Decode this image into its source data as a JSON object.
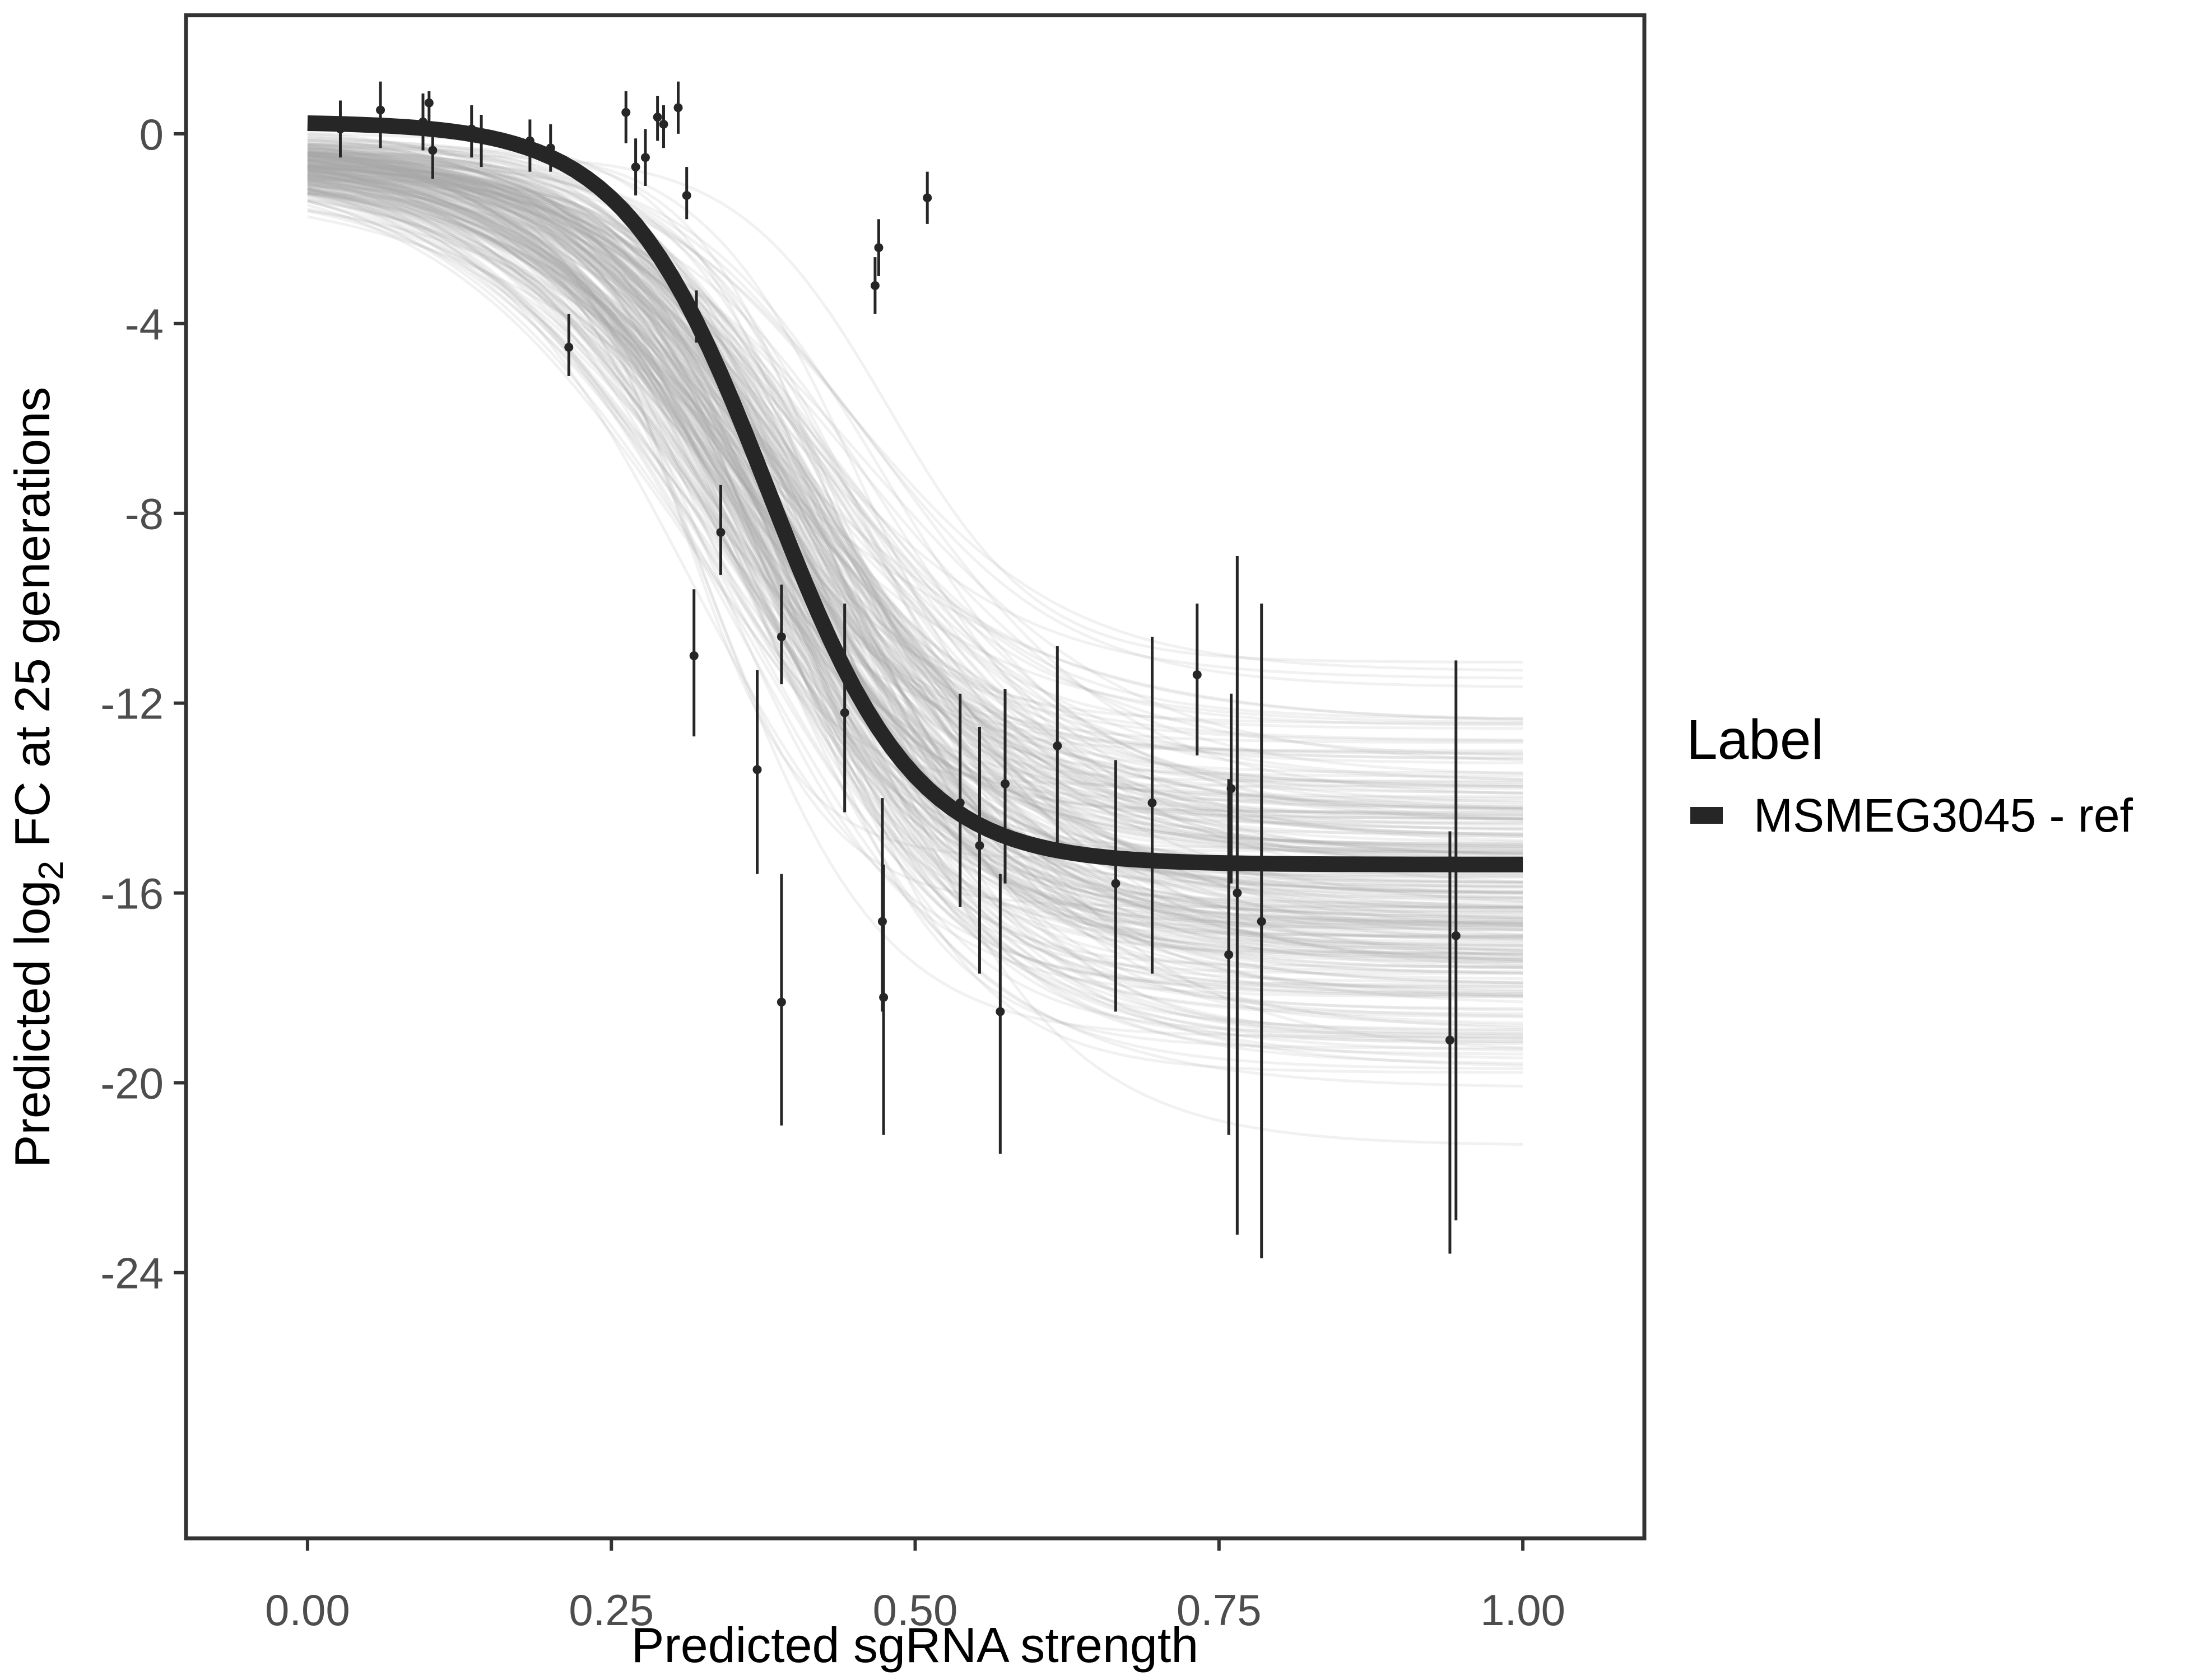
{
  "chart_data": {
    "type": "line",
    "xlabel": "Predicted sgRNA strength",
    "ylabel": {
      "prefix": "Predicted  log",
      "subscript": "2",
      "suffix": " FC at 25 generations"
    },
    "xlim": [
      -0.1,
      1.1
    ],
    "ylim": [
      -29.6,
      2.5
    ],
    "x_ticks": [
      0.0,
      0.25,
      0.5,
      0.75,
      1.0
    ],
    "x_tick_labels": [
      "0.00",
      "0.25",
      "0.50",
      "0.75",
      "1.00"
    ],
    "y_ticks": [
      0,
      -4,
      -8,
      -12,
      -16,
      -20,
      -24
    ],
    "y_tick_labels": [
      "0",
      "-4",
      "-8",
      "-12",
      "-16",
      "-20",
      "-24"
    ],
    "grid": false,
    "legend": {
      "title": "Label",
      "position": "right",
      "entries": [
        {
          "label": "MSMEG3045 - ref",
          "color": "#262626"
        }
      ]
    },
    "colors": {
      "fit_line": "#262626",
      "posterior_draws": "#a6a6a6",
      "points": "#262626",
      "panel_border": "#333333"
    },
    "series": [
      {
        "name": "MSMEG3045 - ref",
        "type": "logistic_fit",
        "upper": 0.25,
        "lower": -15.4,
        "midpoint": 0.38,
        "scale": 0.06
      },
      {
        "type": "posterior_draws",
        "count": 260,
        "upper_range": [
          -1.3,
          0.3
        ],
        "lower_range": [
          -21.7,
          -10.3
        ],
        "midpoint_range": [
          0.27,
          0.5
        ],
        "scale_range": [
          0.04,
          0.14
        ]
      },
      {
        "type": "points_with_errorbars",
        "points": [
          {
            "x": 0.027,
            "y": 0.1,
            "lo": -0.5,
            "hi": 0.7
          },
          {
            "x": 0.06,
            "y": 0.5,
            "lo": -0.3,
            "hi": 1.1
          },
          {
            "x": 0.095,
            "y": 0.25,
            "lo": -0.35,
            "hi": 0.85
          },
          {
            "x": 0.1,
            "y": 0.65,
            "lo": 0.1,
            "hi": 0.9
          },
          {
            "x": 0.103,
            "y": -0.35,
            "lo": -0.95,
            "hi": 0.2
          },
          {
            "x": 0.135,
            "y": 0.1,
            "lo": -0.5,
            "hi": 0.6
          },
          {
            "x": 0.143,
            "y": 0.0,
            "lo": -0.7,
            "hi": 0.4
          },
          {
            "x": 0.183,
            "y": -0.15,
            "lo": -0.8,
            "hi": 0.3
          },
          {
            "x": 0.2,
            "y": -0.3,
            "lo": -0.8,
            "hi": 0.2
          },
          {
            "x": 0.215,
            "y": -4.5,
            "lo": -5.1,
            "hi": -3.8
          },
          {
            "x": 0.262,
            "y": 0.45,
            "lo": -0.2,
            "hi": 0.9
          },
          {
            "x": 0.27,
            "y": -0.7,
            "lo": -1.3,
            "hi": -0.1
          },
          {
            "x": 0.278,
            "y": -0.5,
            "lo": -1.1,
            "hi": 0.1
          },
          {
            "x": 0.288,
            "y": 0.35,
            "lo": -0.15,
            "hi": 0.8
          },
          {
            "x": 0.293,
            "y": 0.2,
            "lo": -0.3,
            "hi": 0.6
          },
          {
            "x": 0.305,
            "y": 0.55,
            "lo": 0.0,
            "hi": 1.1
          },
          {
            "x": 0.312,
            "y": -1.3,
            "lo": -1.8,
            "hi": -0.7
          },
          {
            "x": 0.32,
            "y": -3.8,
            "lo": -4.4,
            "hi": -3.3
          },
          {
            "x": 0.318,
            "y": -11.0,
            "lo": -12.7,
            "hi": -9.6
          },
          {
            "x": 0.34,
            "y": -8.4,
            "lo": -9.3,
            "hi": -7.4
          },
          {
            "x": 0.37,
            "y": -13.4,
            "lo": -15.6,
            "hi": -11.3
          },
          {
            "x": 0.39,
            "y": -10.6,
            "lo": -11.6,
            "hi": -9.5
          },
          {
            "x": 0.39,
            "y": -18.3,
            "lo": -20.9,
            "hi": -15.6
          },
          {
            "x": 0.442,
            "y": -12.2,
            "lo": -14.3,
            "hi": -9.9
          },
          {
            "x": 0.467,
            "y": -3.2,
            "lo": -3.8,
            "hi": -2.6
          },
          {
            "x": 0.47,
            "y": -2.4,
            "lo": -3.0,
            "hi": -1.8
          },
          {
            "x": 0.473,
            "y": -16.6,
            "lo": -18.5,
            "hi": -14.0
          },
          {
            "x": 0.474,
            "y": -18.2,
            "lo": -21.1,
            "hi": -15.4
          },
          {
            "x": 0.51,
            "y": -1.35,
            "lo": -1.9,
            "hi": -0.8
          },
          {
            "x": 0.537,
            "y": -14.1,
            "lo": -16.3,
            "hi": -11.8
          },
          {
            "x": 0.553,
            "y": -15.0,
            "lo": -17.7,
            "hi": -12.5
          },
          {
            "x": 0.57,
            "y": -18.5,
            "lo": -21.5,
            "hi": -15.6
          },
          {
            "x": 0.574,
            "y": -13.7,
            "lo": -15.8,
            "hi": -11.7
          },
          {
            "x": 0.617,
            "y": -12.9,
            "lo": -15.0,
            "hi": -10.8
          },
          {
            "x": 0.665,
            "y": -15.8,
            "lo": -18.5,
            "hi": -13.2
          },
          {
            "x": 0.695,
            "y": -14.1,
            "lo": -17.7,
            "hi": -10.6
          },
          {
            "x": 0.732,
            "y": -11.4,
            "lo": -13.1,
            "hi": -9.9
          },
          {
            "x": 0.758,
            "y": -17.3,
            "lo": -21.1,
            "hi": -13.6
          },
          {
            "x": 0.76,
            "y": -13.8,
            "lo": -15.8,
            "hi": -11.8
          },
          {
            "x": 0.765,
            "y": -16.0,
            "lo": -23.2,
            "hi": -8.9
          },
          {
            "x": 0.785,
            "y": -16.6,
            "lo": -23.7,
            "hi": -9.9
          },
          {
            "x": 0.94,
            "y": -19.1,
            "lo": -23.6,
            "hi": -14.7
          },
          {
            "x": 0.945,
            "y": -16.9,
            "lo": -22.9,
            "hi": -11.1
          }
        ]
      }
    ]
  }
}
